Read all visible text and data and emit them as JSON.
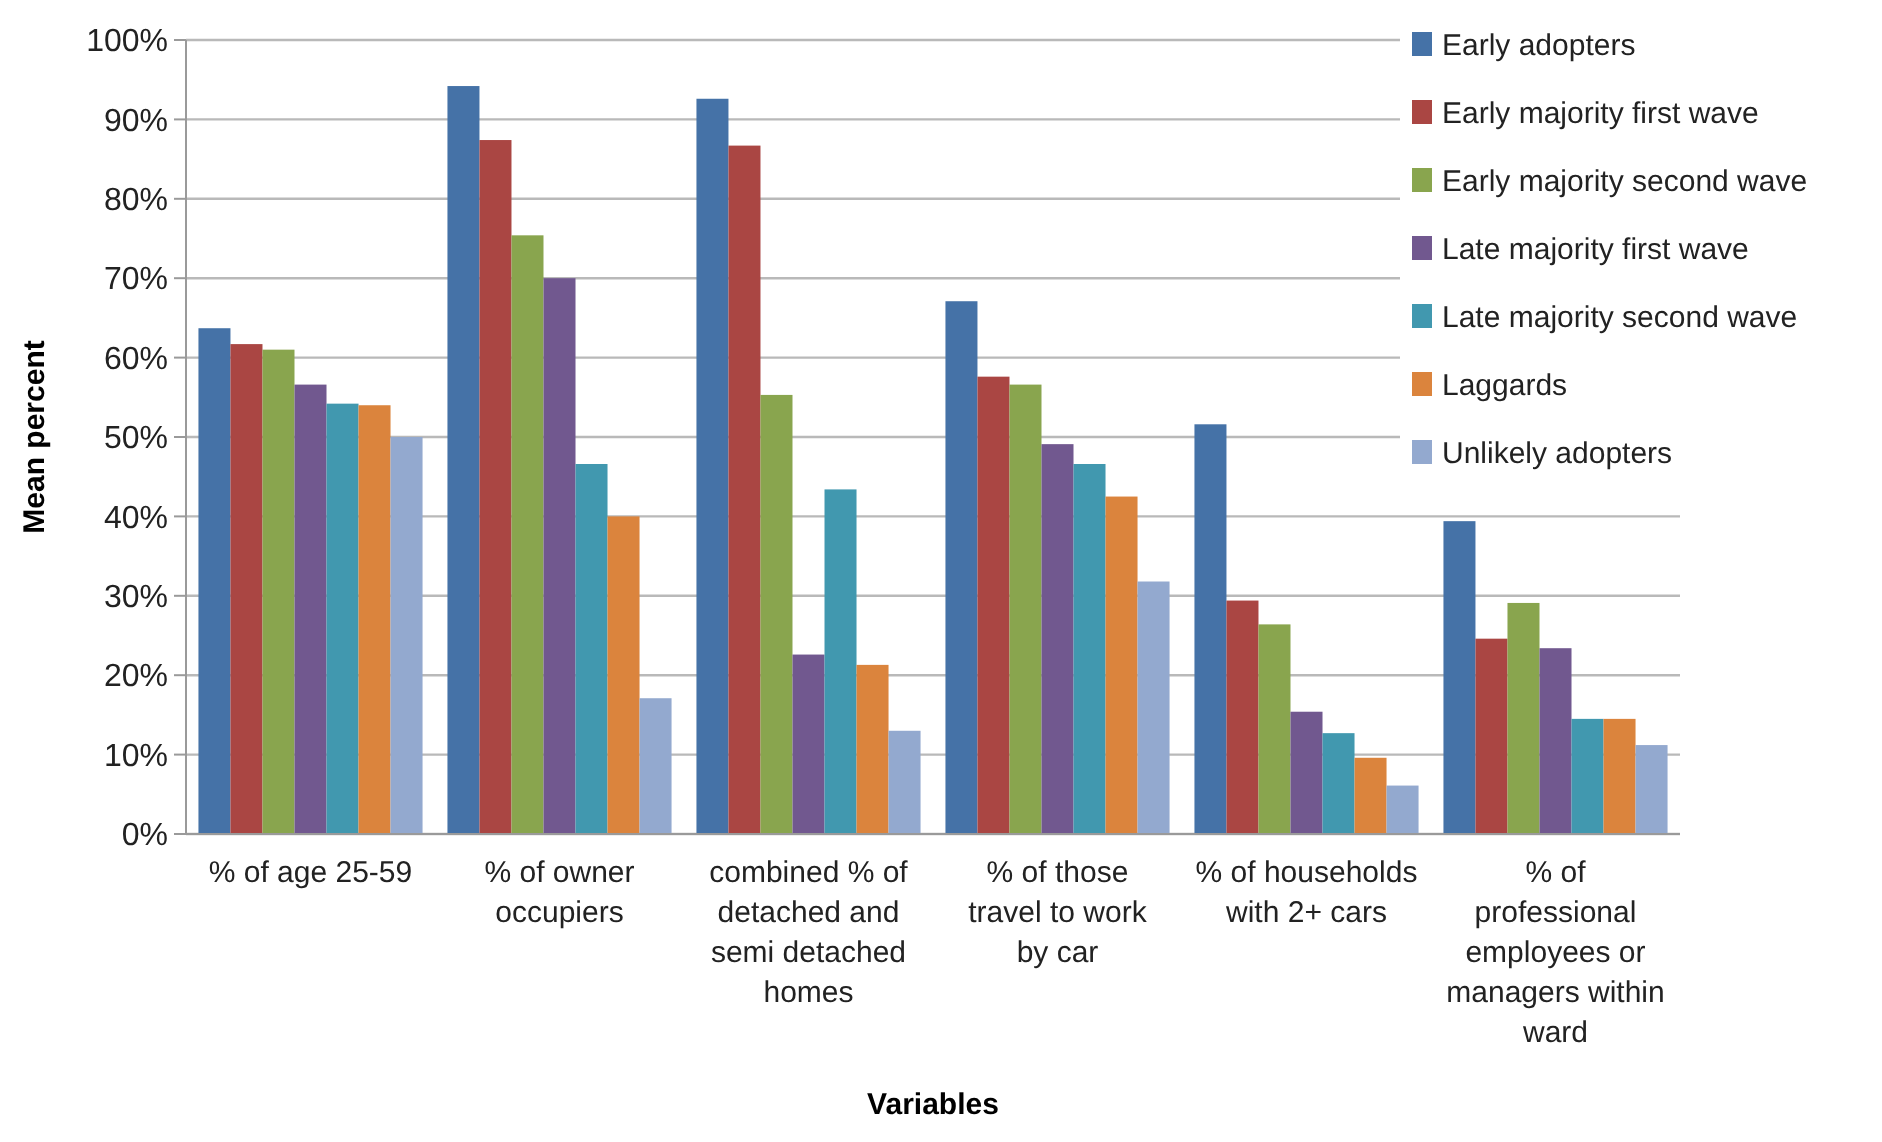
{
  "chart_data": {
    "type": "bar",
    "xlabel": "Variables",
    "ylabel": "Mean percent",
    "categories": [
      "% of age 25-59",
      "% of owner occupiers",
      "combined % of detached and semi detached homes",
      "% of those travel to work by car",
      "% of households with 2+ cars",
      "% of professional employees or managers within ward"
    ],
    "series": [
      {
        "name": "Early adopters",
        "color": "#4572a7",
        "values": [
          63.7,
          94.2,
          92.6,
          67.1,
          51.6,
          39.4
        ]
      },
      {
        "name": "Early majority first wave",
        "color": "#aa4643",
        "values": [
          61.7,
          87.4,
          86.7,
          57.6,
          29.4,
          24.6
        ]
      },
      {
        "name": "Early majority second wave",
        "color": "#89a54e",
        "values": [
          61,
          75.4,
          55.3,
          56.6,
          26.4,
          29.1
        ]
      },
      {
        "name": "Late majority first wave",
        "color": "#71588f",
        "values": [
          56.6,
          70,
          22.6,
          49.1,
          15.4,
          23.4
        ]
      },
      {
        "name": "Late majority second wave",
        "color": "#4198af",
        "values": [
          54.2,
          46.6,
          43.4,
          46.6,
          12.7,
          14.5
        ]
      },
      {
        "name": "Laggards",
        "color": "#db843d",
        "values": [
          54,
          40,
          21.3,
          42.5,
          9.6,
          14.5
        ]
      },
      {
        "name": "Unlikely adopters",
        "color": "#93a9cf",
        "values": [
          50,
          17.1,
          13,
          31.8,
          6.1,
          11.2
        ]
      }
    ],
    "ylim": [
      0,
      100
    ],
    "yticks": [
      {
        "value": 0,
        "label": "0%"
      },
      {
        "value": 10,
        "label": "10%"
      },
      {
        "value": 20,
        "label": "20%"
      },
      {
        "value": 30,
        "label": "30%"
      },
      {
        "value": 40,
        "label": "40%"
      },
      {
        "value": 50,
        "label": "50%"
      },
      {
        "value": 60,
        "label": "60%"
      },
      {
        "value": 70,
        "label": "70%"
      },
      {
        "value": 80,
        "label": "80%"
      },
      {
        "value": 90,
        "label": "90%"
      },
      {
        "value": 100,
        "label": "100%"
      }
    ],
    "grid": "y",
    "legend": "top right"
  }
}
